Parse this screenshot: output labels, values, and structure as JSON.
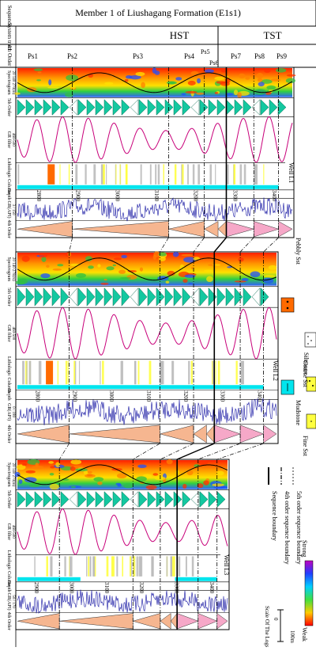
{
  "header": {
    "title": "Member 1 of Liushagang Formation (E1s1)",
    "col_sequence": "Sequence",
    "col_system_tract": "System tract",
    "col_4th_order": "4th Order",
    "tracts": [
      "HST",
      "TST"
    ],
    "parasequences": [
      "Ps1",
      "Ps2",
      "Ps3",
      "Ps4",
      "Ps5",
      "Ps6",
      "Ps7",
      "Ps8",
      "Ps9"
    ]
  },
  "track_labels": {
    "gr_api": "GR(API)",
    "fourth_order": "4th Order",
    "depth": "Depth",
    "lithologic": "Lithologic Column",
    "gr_filter": "GR filter",
    "gr_filter_range": "460-500",
    "fifth_order": "5th Order",
    "spectrogram": "Spectrogram"
  },
  "wells": [
    {
      "name": "Well  L1",
      "gr_scale": "3 / 150",
      "spec_range": "20  140  270(m)",
      "depths": [
        "2800",
        "2900",
        "3000",
        "3100",
        "3200",
        "3300",
        "3400"
      ]
    },
    {
      "name": "Well  L2",
      "gr_scale": "0  /  180",
      "spec_range": "20  140  270(m)",
      "depths": [
        "2800",
        "2900",
        "3000",
        "3100",
        "3200",
        "3300",
        "3400"
      ]
    },
    {
      "name": "Well  L3",
      "gr_scale": "50  /  170",
      "spec_range": "20  140  270(m)",
      "depths": [
        "2900",
        "3000",
        "3100",
        "3200",
        "3300",
        "3400"
      ]
    }
  ],
  "legend": {
    "lithology": [
      {
        "label": "Mudstone",
        "color": "#00e5ee"
      },
      {
        "label": "Siltstone",
        "color": "#ffffff"
      },
      {
        "label": "Pebbly Sst",
        "color": "#ff6a00"
      },
      {
        "label": "Fine Sst",
        "color": "#ffff40"
      },
      {
        "label": "Coarse Sst",
        "color": "#ffff40"
      }
    ],
    "boundaries": [
      {
        "label": "Sequence boundary",
        "style": "solid"
      },
      {
        "label": "4th order sequence boundary",
        "style": "dash-dot"
      },
      {
        "label": "5th order sequence boundary",
        "style": "dashed"
      }
    ],
    "colorbar": {
      "low": "Weak",
      "high": "Strong"
    },
    "scale": {
      "title": "Scale Of The Logs",
      "zero": "0",
      "value": "100m"
    }
  },
  "colors": {
    "mudstone": "#00e5ee",
    "pebbly": "#ff6a00",
    "fine_sst": "#ffff40",
    "gr_filter": "#c8007a",
    "gr_curve": "#1010a0",
    "fifth_order": "#14c8a0",
    "fourth_order_up": "#f6b690",
    "fourth_order_down": "#f6a8c8"
  }
}
